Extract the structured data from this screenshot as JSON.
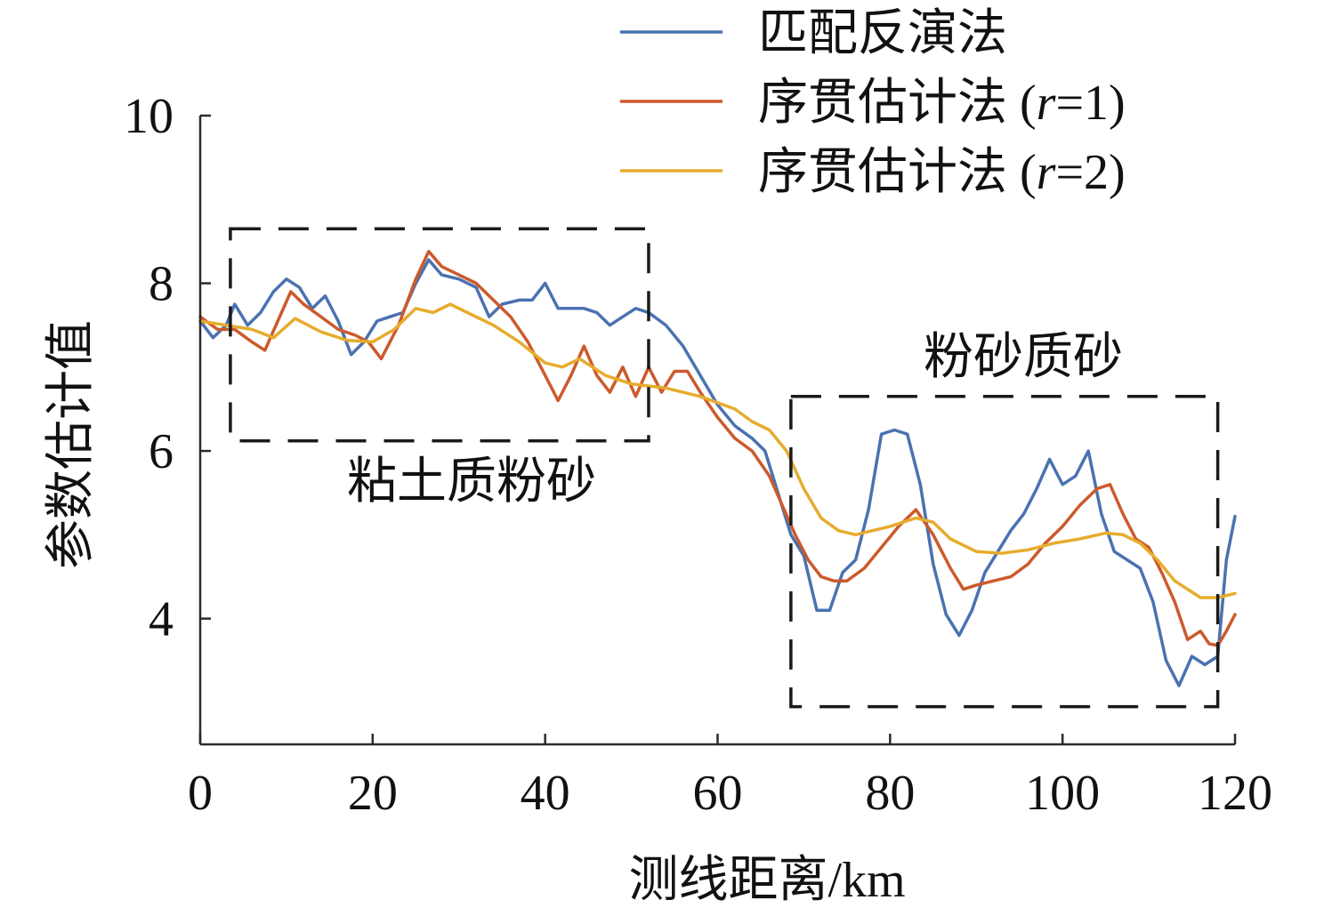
{
  "chart_data": {
    "type": "line",
    "title": "",
    "xlabel": "测线距离/km",
    "ylabel": "参数估计值",
    "xlim": [
      0,
      120
    ],
    "ylim": [
      2.5,
      10
    ],
    "x_ticks": [
      "0",
      "20",
      "40",
      "60",
      "80",
      "100",
      "120"
    ],
    "y_ticks": [
      "4",
      "6",
      "8",
      "10"
    ],
    "x_tick_values": [
      0,
      20,
      40,
      60,
      80,
      100,
      120
    ],
    "y_tick_values": [
      4,
      6,
      8,
      10
    ],
    "grid": false,
    "legend_position": "top-right",
    "series": [
      {
        "name": "匹配反演法",
        "legend_main": "匹配反演法",
        "legend_italic": "",
        "legend_tail": "",
        "color": "#4a72b0",
        "points": [
          [
            0,
            7.55
          ],
          [
            1.5,
            7.35
          ],
          [
            3,
            7.5
          ],
          [
            4,
            7.75
          ],
          [
            5.5,
            7.5
          ],
          [
            7,
            7.65
          ],
          [
            8.5,
            7.9
          ],
          [
            10,
            8.05
          ],
          [
            11.5,
            7.95
          ],
          [
            13,
            7.7
          ],
          [
            14.5,
            7.85
          ],
          [
            16,
            7.55
          ],
          [
            17.5,
            7.15
          ],
          [
            19,
            7.3
          ],
          [
            20.5,
            7.55
          ],
          [
            22,
            7.6
          ],
          [
            23.5,
            7.65
          ],
          [
            25,
            8.0
          ],
          [
            26.5,
            8.28
          ],
          [
            28,
            8.1
          ],
          [
            30,
            8.05
          ],
          [
            32,
            7.95
          ],
          [
            33.5,
            7.6
          ],
          [
            35,
            7.75
          ],
          [
            37,
            7.8
          ],
          [
            38.5,
            7.8
          ],
          [
            40,
            8.0
          ],
          [
            41.5,
            7.7
          ],
          [
            43,
            7.7
          ],
          [
            44.5,
            7.7
          ],
          [
            46,
            7.65
          ],
          [
            47.5,
            7.5
          ],
          [
            49,
            7.6
          ],
          [
            50.5,
            7.7
          ],
          [
            52,
            7.65
          ],
          [
            54,
            7.5
          ],
          [
            56,
            7.25
          ],
          [
            58,
            6.9
          ],
          [
            60,
            6.55
          ],
          [
            62,
            6.3
          ],
          [
            64,
            6.15
          ],
          [
            65.5,
            6.0
          ],
          [
            67,
            5.5
          ],
          [
            68.5,
            5.0
          ],
          [
            70,
            4.75
          ],
          [
            71.5,
            4.1
          ],
          [
            73,
            4.1
          ],
          [
            74.5,
            4.55
          ],
          [
            76,
            4.7
          ],
          [
            77.5,
            5.3
          ],
          [
            79,
            6.2
          ],
          [
            80.5,
            6.25
          ],
          [
            82,
            6.2
          ],
          [
            83.5,
            5.6
          ],
          [
            85,
            4.65
          ],
          [
            86.5,
            4.05
          ],
          [
            88,
            3.8
          ],
          [
            89.5,
            4.1
          ],
          [
            91,
            4.55
          ],
          [
            92.5,
            4.8
          ],
          [
            94,
            5.05
          ],
          [
            95.5,
            5.25
          ],
          [
            97,
            5.55
          ],
          [
            98.5,
            5.9
          ],
          [
            100,
            5.6
          ],
          [
            101.5,
            5.7
          ],
          [
            103,
            6.0
          ],
          [
            104.5,
            5.25
          ],
          [
            106,
            4.8
          ],
          [
            107.5,
            4.7
          ],
          [
            109,
            4.6
          ],
          [
            110.5,
            4.2
          ],
          [
            112,
            3.5
          ],
          [
            113.5,
            3.2
          ],
          [
            115,
            3.55
          ],
          [
            116.5,
            3.45
          ],
          [
            118,
            3.55
          ],
          [
            119,
            4.7
          ],
          [
            120,
            5.22
          ]
        ]
      },
      {
        "name": "序贯估计法 (r=1)",
        "legend_main": "序贯估计法 (",
        "legend_italic": "r",
        "legend_tail": "=1)",
        "color": "#cc5a2c",
        "points": [
          [
            0,
            7.6
          ],
          [
            2,
            7.45
          ],
          [
            4,
            7.45
          ],
          [
            6,
            7.3
          ],
          [
            7.5,
            7.2
          ],
          [
            9,
            7.55
          ],
          [
            10.5,
            7.9
          ],
          [
            12,
            7.75
          ],
          [
            14,
            7.6
          ],
          [
            16,
            7.45
          ],
          [
            18,
            7.38
          ],
          [
            19.5,
            7.3
          ],
          [
            21,
            7.1
          ],
          [
            23,
            7.5
          ],
          [
            25,
            8.05
          ],
          [
            26.5,
            8.38
          ],
          [
            28,
            8.2
          ],
          [
            30,
            8.1
          ],
          [
            32,
            8.0
          ],
          [
            34,
            7.8
          ],
          [
            36,
            7.6
          ],
          [
            38,
            7.3
          ],
          [
            40,
            6.9
          ],
          [
            41.5,
            6.6
          ],
          [
            43,
            6.9
          ],
          [
            44.5,
            7.25
          ],
          [
            46,
            6.9
          ],
          [
            47.5,
            6.7
          ],
          [
            49,
            7.0
          ],
          [
            50.5,
            6.65
          ],
          [
            52,
            7.0
          ],
          [
            53.5,
            6.7
          ],
          [
            55,
            6.95
          ],
          [
            56.5,
            6.95
          ],
          [
            58,
            6.7
          ],
          [
            60,
            6.4
          ],
          [
            62,
            6.15
          ],
          [
            64,
            6.0
          ],
          [
            66,
            5.7
          ],
          [
            67.5,
            5.35
          ],
          [
            69,
            5.0
          ],
          [
            70.5,
            4.7
          ],
          [
            72,
            4.5
          ],
          [
            73.5,
            4.45
          ],
          [
            75,
            4.45
          ],
          [
            77,
            4.6
          ],
          [
            79,
            4.85
          ],
          [
            81,
            5.1
          ],
          [
            83,
            5.3
          ],
          [
            85,
            5.0
          ],
          [
            87,
            4.6
          ],
          [
            88.5,
            4.35
          ],
          [
            90,
            4.4
          ],
          [
            92,
            4.45
          ],
          [
            94,
            4.5
          ],
          [
            96,
            4.65
          ],
          [
            98,
            4.9
          ],
          [
            100,
            5.1
          ],
          [
            102,
            5.35
          ],
          [
            104,
            5.55
          ],
          [
            105.5,
            5.6
          ],
          [
            107,
            5.25
          ],
          [
            108.5,
            4.95
          ],
          [
            110,
            4.85
          ],
          [
            111.5,
            4.55
          ],
          [
            113,
            4.2
          ],
          [
            114.5,
            3.75
          ],
          [
            116,
            3.85
          ],
          [
            117,
            3.7
          ],
          [
            118,
            3.68
          ],
          [
            119,
            3.85
          ],
          [
            120,
            4.05
          ]
        ]
      },
      {
        "name": "序贯估计法 (r=2)",
        "legend_main": "序贯估计法 (",
        "legend_italic": "r",
        "legend_tail": "=2)",
        "color": "#e6ac2d",
        "points": [
          [
            0,
            7.55
          ],
          [
            3,
            7.5
          ],
          [
            6,
            7.45
          ],
          [
            8.5,
            7.35
          ],
          [
            11,
            7.58
          ],
          [
            14,
            7.42
          ],
          [
            17,
            7.32
          ],
          [
            20,
            7.3
          ],
          [
            22.5,
            7.45
          ],
          [
            25,
            7.7
          ],
          [
            27,
            7.65
          ],
          [
            29,
            7.75
          ],
          [
            31,
            7.65
          ],
          [
            34,
            7.5
          ],
          [
            37,
            7.3
          ],
          [
            40,
            7.05
          ],
          [
            42,
            7.0
          ],
          [
            44,
            7.1
          ],
          [
            47,
            6.9
          ],
          [
            50,
            6.8
          ],
          [
            54,
            6.75
          ],
          [
            58,
            6.65
          ],
          [
            62,
            6.5
          ],
          [
            64,
            6.35
          ],
          [
            66,
            6.25
          ],
          [
            68,
            6.0
          ],
          [
            70,
            5.55
          ],
          [
            72,
            5.2
          ],
          [
            74,
            5.05
          ],
          [
            76,
            5.0
          ],
          [
            78,
            5.05
          ],
          [
            80,
            5.1
          ],
          [
            83,
            5.2
          ],
          [
            85,
            5.15
          ],
          [
            87,
            4.95
          ],
          [
            90,
            4.8
          ],
          [
            93,
            4.78
          ],
          [
            96,
            4.82
          ],
          [
            99,
            4.9
          ],
          [
            102,
            4.95
          ],
          [
            105,
            5.02
          ],
          [
            107,
            5.0
          ],
          [
            109,
            4.9
          ],
          [
            111,
            4.7
          ],
          [
            113,
            4.45
          ],
          [
            116,
            4.25
          ],
          [
            118,
            4.25
          ],
          [
            120,
            4.3
          ]
        ]
      }
    ],
    "annotations": [
      {
        "text": "粘土质粉砂",
        "box_x": [
          3.5,
          52
        ],
        "box_y": [
          6.12,
          8.65
        ]
      },
      {
        "text": "粉砂质砂",
        "box_x": [
          68.5,
          118
        ],
        "box_y": [
          2.95,
          6.65
        ]
      }
    ]
  }
}
